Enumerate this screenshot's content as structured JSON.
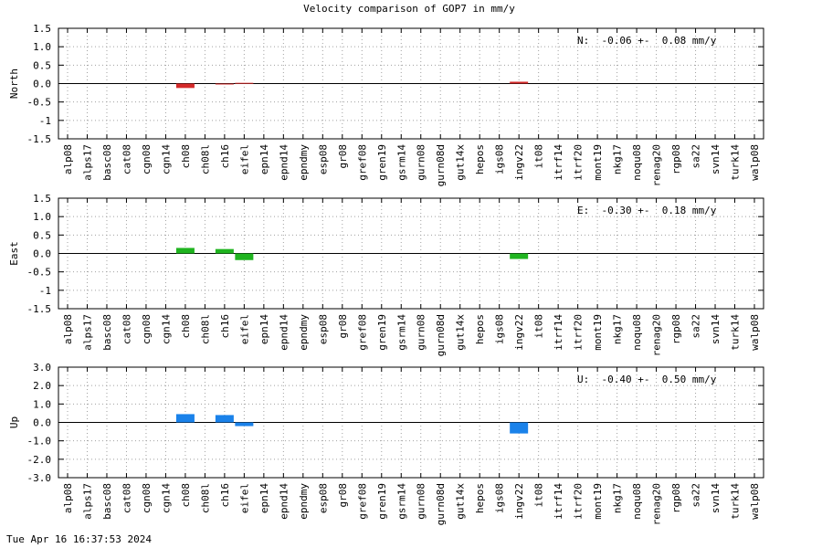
{
  "title": "Velocity comparison of GOP7 in mm/y",
  "timestamp": "Tue Apr 16 16:37:53 2024",
  "chart_data": [
    {
      "type": "bar",
      "ylabel": "North",
      "annotation": "N:  -0.06 +-  0.08 mm/y",
      "color": "#d42a2a",
      "grid": true,
      "categories": [
        "alp08",
        "alps17",
        "basc08",
        "cat08",
        "cgn08",
        "cgn14",
        "ch08",
        "ch08l",
        "ch16",
        "eifel",
        "epn14",
        "epnd14",
        "epndmy",
        "esp08",
        "gr08",
        "gref08",
        "gren19",
        "gsrm14",
        "gurn08",
        "gurn08d",
        "gut14x",
        "hepos",
        "igs08",
        "ingv22",
        "it08",
        "itrf14",
        "itrf20",
        "mont19",
        "nkg17",
        "noqu08",
        "renag20",
        "rgp08",
        "sa22",
        "svn14",
        "turk14",
        "walp08"
      ],
      "values": [
        null,
        null,
        null,
        null,
        null,
        null,
        -0.12,
        null,
        -0.02,
        0.02,
        null,
        null,
        null,
        null,
        null,
        null,
        null,
        null,
        null,
        null,
        null,
        null,
        null,
        0.05,
        null,
        null,
        null,
        null,
        null,
        null,
        null,
        null,
        null,
        null,
        null,
        null
      ],
      "ylim": [
        -1.5,
        1.5
      ],
      "yticks": [
        -1.5,
        -1.0,
        -0.5,
        {
          "value": 0,
          "label": "0.0"
        },
        0.5,
        {
          "value": 1,
          "label": "1.0"
        },
        1.5
      ]
    },
    {
      "type": "bar",
      "ylabel": "East",
      "annotation": "E:  -0.30 +-  0.18 mm/y",
      "color": "#1fb41f",
      "grid": true,
      "categories": [
        "alp08",
        "alps17",
        "basc08",
        "cat08",
        "cgn08",
        "cgn14",
        "ch08",
        "ch08l",
        "ch16",
        "eifel",
        "epn14",
        "epnd14",
        "epndmy",
        "esp08",
        "gr08",
        "gref08",
        "gren19",
        "gsrm14",
        "gurn08",
        "gurn08d",
        "gut14x",
        "hepos",
        "igs08",
        "ingv22",
        "it08",
        "itrf14",
        "itrf20",
        "mont19",
        "nkg17",
        "noqu08",
        "renag20",
        "rgp08",
        "sa22",
        "svn14",
        "turk14",
        "walp08"
      ],
      "values": [
        null,
        null,
        null,
        null,
        null,
        null,
        0.15,
        null,
        0.12,
        -0.18,
        null,
        null,
        null,
        null,
        null,
        null,
        null,
        null,
        null,
        null,
        null,
        null,
        null,
        -0.15,
        null,
        null,
        null,
        null,
        null,
        null,
        null,
        null,
        null,
        null,
        null,
        null
      ],
      "ylim": [
        -1.5,
        1.5
      ],
      "yticks": [
        -1.5,
        -1.0,
        -0.5,
        {
          "value": 0,
          "label": "0.0"
        },
        0.5,
        {
          "value": 1,
          "label": "1.0"
        },
        1.5
      ]
    },
    {
      "type": "bar",
      "ylabel": "Up",
      "annotation": "U:  -0.40 +-  0.50 mm/y",
      "color": "#1a82ea",
      "grid": true,
      "categories": [
        "alp08",
        "alps17",
        "basc08",
        "cat08",
        "cgn08",
        "cgn14",
        "ch08",
        "ch08l",
        "ch16",
        "eifel",
        "epn14",
        "epnd14",
        "epndmy",
        "esp08",
        "gr08",
        "gref08",
        "gren19",
        "gsrm14",
        "gurn08",
        "gurn08d",
        "gut14x",
        "hepos",
        "igs08",
        "ingv22",
        "it08",
        "itrf14",
        "itrf20",
        "mont19",
        "nkg17",
        "noqu08",
        "renag20",
        "rgp08",
        "sa22",
        "svn14",
        "turk14",
        "walp08"
      ],
      "values": [
        null,
        null,
        null,
        null,
        null,
        null,
        0.45,
        null,
        0.4,
        -0.2,
        null,
        null,
        null,
        null,
        null,
        null,
        null,
        null,
        null,
        null,
        null,
        null,
        null,
        -0.6,
        null,
        null,
        null,
        null,
        null,
        null,
        null,
        null,
        null,
        null,
        null,
        null
      ],
      "ylim": [
        -3,
        3
      ],
      "yticks": [
        {
          "value": -3,
          "label": "-3.0"
        },
        {
          "value": -2,
          "label": "-2.0"
        },
        {
          "value": -1,
          "label": "-1.0"
        },
        {
          "value": 0,
          "label": "0.0"
        },
        {
          "value": 1,
          "label": "1.0"
        },
        {
          "value": 2,
          "label": "2.0"
        },
        {
          "value": 3,
          "label": "3.0"
        }
      ]
    }
  ]
}
